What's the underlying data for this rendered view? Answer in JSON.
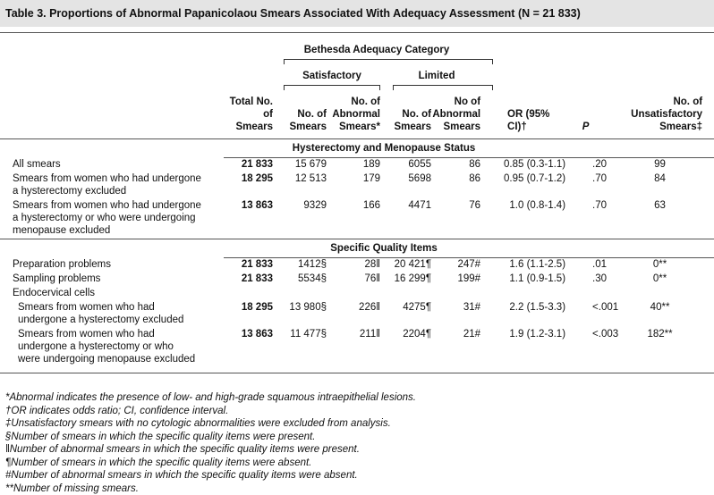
{
  "header": {
    "title": "Table 3. Proportions of Abnormal Papanicolaou Smears Associated With Adequacy Assessment (N = 21 833)"
  },
  "table": {
    "group": "Bethesda Adequacy Category",
    "subgroups": [
      "Satisfactory",
      "Limited"
    ],
    "columns": [
      "Total No.\nof Smears",
      "No. of\nSmears",
      "No. of\nAbnormal\nSmears*",
      "No. of\nSmears",
      "No of\nAbnormal\nSmears",
      "OR (95% CI)†",
      "P",
      "No. of\nUnsatisfactory\nSmears‡"
    ],
    "sections": [
      {
        "title": "Hysterectomy and Menopause Status",
        "rows": [
          [
            "All smears",
            "21 833",
            "15 679",
            "189",
            "6055",
            "86",
            "0.85 (0.3-1.1)",
            ".20",
            "99"
          ],
          [
            "Smears from women who had undergone\n   a hysterectomy excluded",
            "18 295",
            "12 513",
            "179",
            "5698",
            "86",
            "0.95 (0.7-1.2)",
            ".70",
            "84"
          ],
          [
            "Smears from women who had undergone\n   a hysterectomy or who were undergoing\n   menopause excluded",
            "13 863",
            "9329",
            "166",
            "4471",
            "76",
            "1.0 (0.8-1.4)",
            ".70",
            "63"
          ]
        ]
      },
      {
        "title": "Specific Quality Items",
        "rows": [
          [
            "Preparation problems",
            "21 833",
            "1412§",
            "28‖",
            "20 421¶",
            "247#",
            "1.6 (1.1-2.5)",
            ".01",
            "0**"
          ],
          [
            "Sampling problems",
            "21 833",
            "5534§",
            "76‖",
            "16 299¶",
            "199#",
            "1.1 (0.9-1.5)",
            ".30",
            "0**"
          ]
        ],
        "group": {
          "label": "Endocervical cells",
          "rows": [
            [
              "Smears from women who had\n   undergone a hysterectomy excluded",
              "18 295",
              "13 980§",
              "226‖",
              "4275¶",
              "31#",
              "2.2 (1.5-3.3)",
              "<.001",
              "40**"
            ],
            [
              "Smears from women who had\n   undergone a hysterectomy or who\n   were undergoing menopause excluded",
              "13 863",
              "11 477§",
              "211‖",
              "2204¶",
              "21#",
              "1.9 (1.2-3.1)",
              "<.003",
              "182**"
            ]
          ]
        }
      }
    ]
  },
  "footnotes": [
    "*Abnormal indicates the presence of low- and high-grade squamous intraepithelial lesions.",
    "†OR indicates odds ratio; CI, confidence interval.",
    "‡Unsatisfactory smears with no cytologic abnormalities were excluded from analysis.",
    "§Number of smears in which the specific quality items were present.",
    "‖Number of abnormal smears in which the specific quality items were present.",
    "¶Number of smears in which the specific quality items were absent.",
    "#Number of abnormal smears in which the specific quality items were absent.",
    "**Number of missing smears."
  ]
}
